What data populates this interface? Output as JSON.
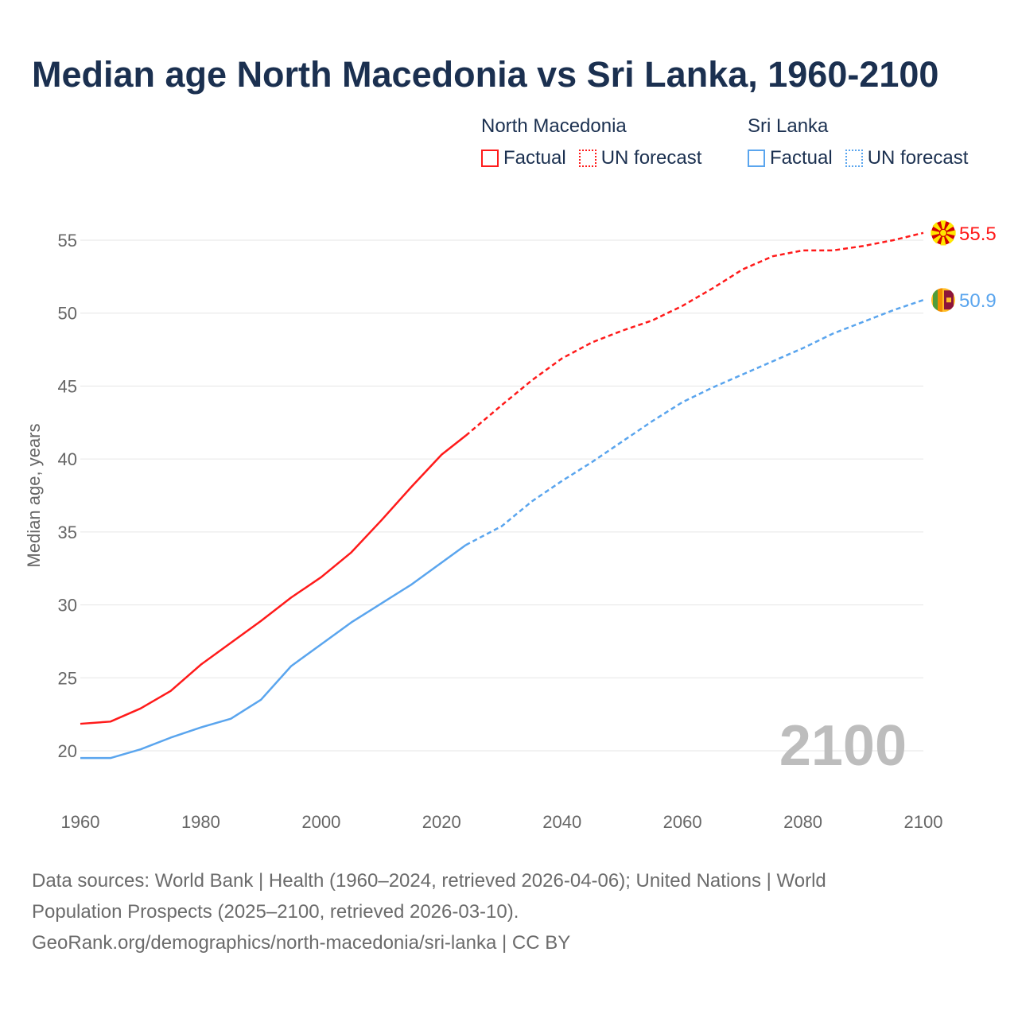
{
  "title": "Median age North Macedonia vs Sri Lanka, 1960-2100",
  "legend": {
    "groups": [
      {
        "name": "North Macedonia",
        "factual": "Factual",
        "forecast": "UN forecast",
        "color": "#ff1a1a"
      },
      {
        "name": "Sri Lanka",
        "factual": "Factual",
        "forecast": "UN forecast",
        "color": "#5aa5ee"
      }
    ]
  },
  "year_label": "2100",
  "footer": {
    "line1": "Data sources: World Bank | Health (1960–2024, retrieved 2026-04-06); United Nations | World",
    "line2": "Population Prospects (2025–2100, retrieved 2026-03-10).",
    "line3": "GeoRank.org/demographics/north-macedonia/sri-lanka | CC BY"
  },
  "chart_data": {
    "type": "line",
    "title": "Median age North Macedonia vs Sri Lanka, 1960-2100",
    "xlabel": "",
    "ylabel": "Median age, years",
    "xlim": [
      1960,
      2100
    ],
    "ylim": [
      17.5,
      57
    ],
    "xticks": [
      1960,
      1980,
      2000,
      2020,
      2040,
      2060,
      2080,
      2100
    ],
    "yticks": [
      20,
      25,
      30,
      35,
      40,
      45,
      50,
      55
    ],
    "grid": true,
    "factual_until": 2024,
    "x": [
      1960,
      1965,
      1970,
      1975,
      1980,
      1985,
      1990,
      1995,
      2000,
      2005,
      2010,
      2015,
      2020,
      2024,
      2030,
      2035,
      2040,
      2045,
      2050,
      2055,
      2060,
      2065,
      2070,
      2075,
      2080,
      2085,
      2090,
      2095,
      2100
    ],
    "series": [
      {
        "name": "North Macedonia",
        "color": "#ff1a1a",
        "end_label": "55.5",
        "values": [
          21.85,
          22.0,
          22.9,
          24.1,
          25.9,
          27.4,
          28.9,
          30.5,
          31.9,
          33.6,
          35.8,
          38.1,
          40.3,
          41.6,
          43.7,
          45.4,
          46.9,
          48.0,
          48.8,
          49.5,
          50.5,
          51.7,
          53.0,
          53.9,
          54.3,
          54.3,
          54.6,
          55.0,
          55.5
        ]
      },
      {
        "name": "Sri Lanka",
        "color": "#5aa5ee",
        "end_label": "50.9",
        "values": [
          19.5,
          19.5,
          20.1,
          20.9,
          21.6,
          22.2,
          23.5,
          25.8,
          27.3,
          28.8,
          30.1,
          31.4,
          32.9,
          34.1,
          35.4,
          37.1,
          38.5,
          39.8,
          41.2,
          42.6,
          43.9,
          44.9,
          45.8,
          46.7,
          47.6,
          48.6,
          49.4,
          50.2,
          50.9
        ]
      }
    ]
  }
}
